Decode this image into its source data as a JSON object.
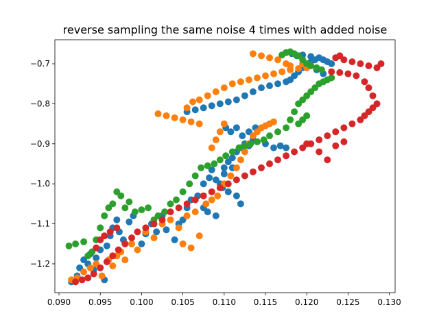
{
  "chart_data": {
    "type": "scatter",
    "title": "reverse sampling the same noise 4 times with added noise",
    "xlabel": "",
    "ylabel": "",
    "xlim": [
      0.0895,
      0.1307
    ],
    "ylim": [
      -1.272,
      -0.64
    ],
    "xticks": [
      0.09,
      0.095,
      0.1,
      0.105,
      0.11,
      0.115,
      0.12,
      0.125,
      0.13
    ],
    "xtick_labels": [
      "0.090",
      "0.095",
      "0.100",
      "0.105",
      "0.110",
      "0.115",
      "0.120",
      "0.125",
      "0.130"
    ],
    "yticks": [
      -0.7,
      -0.8,
      -0.9,
      -1.0,
      -1.1,
      -1.2
    ],
    "ytick_labels": [
      "−0.7",
      "−0.8",
      "−0.9",
      "−1.0",
      "−1.1",
      "−1.2"
    ],
    "grid": false,
    "series": [
      {
        "color": "#1f77b4",
        "points": [
          [
            0.0915,
            -1.245
          ],
          [
            0.0922,
            -1.23
          ],
          [
            0.0925,
            -1.21
          ],
          [
            0.093,
            -1.19
          ],
          [
            0.0935,
            -1.2
          ],
          [
            0.0938,
            -1.175
          ],
          [
            0.0942,
            -1.215
          ],
          [
            0.0945,
            -1.185
          ],
          [
            0.095,
            -1.165
          ],
          [
            0.0955,
            -1.24
          ],
          [
            0.0958,
            -1.155
          ],
          [
            0.0962,
            -1.13
          ],
          [
            0.0965,
            -1.11
          ],
          [
            0.097,
            -1.09
          ],
          [
            0.0973,
            -1.12
          ],
          [
            0.0978,
            -1.14
          ],
          [
            0.0985,
            -1.095
          ],
          [
            0.099,
            -1.08
          ],
          [
            0.1,
            -1.15
          ],
          [
            0.1005,
            -1.125
          ],
          [
            0.1012,
            -1.1
          ],
          [
            0.1018,
            -1.12
          ],
          [
            0.1025,
            -1.08
          ],
          [
            0.103,
            -1.115
          ],
          [
            0.104,
            -1.14
          ],
          [
            0.1045,
            -1.1
          ],
          [
            0.105,
            -1.09
          ],
          [
            0.1055,
            -1.06
          ],
          [
            0.106,
            -1.04
          ],
          [
            0.1068,
            -1.03
          ],
          [
            0.1075,
            -1.0
          ],
          [
            0.1082,
            -0.985
          ],
          [
            0.109,
            -0.99
          ],
          [
            0.1095,
            -1.0
          ],
          [
            0.11,
            -0.96
          ],
          [
            0.1105,
            -0.945
          ],
          [
            0.111,
            -0.935
          ],
          [
            0.1115,
            -0.92
          ],
          [
            0.112,
            -0.91
          ],
          [
            0.1125,
            -0.9
          ],
          [
            0.113,
            -0.905
          ],
          [
            0.1135,
            -0.89
          ],
          [
            0.114,
            -0.895
          ],
          [
            0.115,
            -0.9
          ],
          [
            0.116,
            -0.91
          ],
          [
            0.1168,
            -0.905
          ],
          [
            0.1175,
            -0.91
          ],
          [
            0.1105,
            -1.02
          ],
          [
            0.1115,
            -1.03
          ],
          [
            0.112,
            -1.05
          ],
          [
            0.1075,
            -1.06
          ],
          [
            0.108,
            -1.07
          ],
          [
            0.109,
            -1.08
          ],
          [
            0.1098,
            -1.01
          ],
          [
            0.1102,
            -0.86
          ],
          [
            0.1108,
            -0.87
          ],
          [
            0.1115,
            -0.86
          ],
          [
            0.1122,
            -0.88
          ],
          [
            0.113,
            -0.87
          ],
          [
            0.1138,
            -0.86
          ],
          [
            0.1055,
            -0.82
          ],
          [
            0.1065,
            -0.815
          ],
          [
            0.1075,
            -0.81
          ],
          [
            0.1085,
            -0.805
          ],
          [
            0.1095,
            -0.8
          ],
          [
            0.1105,
            -0.795
          ],
          [
            0.1115,
            -0.79
          ],
          [
            0.1125,
            -0.78
          ],
          [
            0.1135,
            -0.77
          ],
          [
            0.1145,
            -0.76
          ],
          [
            0.1155,
            -0.755
          ],
          [
            0.1165,
            -0.75
          ],
          [
            0.1175,
            -0.745
          ],
          [
            0.118,
            -0.74
          ],
          [
            0.1185,
            -0.73
          ],
          [
            0.119,
            -0.72
          ],
          [
            0.1195,
            -0.71
          ],
          [
            0.12,
            -0.7
          ],
          [
            0.1205,
            -0.695
          ],
          [
            0.121,
            -0.69
          ],
          [
            0.1215,
            -0.685
          ],
          [
            0.122,
            -0.69
          ],
          [
            0.1225,
            -0.695
          ],
          [
            0.123,
            -0.7
          ],
          [
            0.1188,
            -0.68
          ],
          [
            0.1182,
            -0.675
          ],
          [
            0.1195,
            -0.678
          ],
          [
            0.1205,
            -0.682
          ],
          [
            0.1212,
            -0.715
          ],
          [
            0.122,
            -0.725
          ],
          [
            0.111,
            -0.96
          ],
          [
            0.11,
            -0.975
          ],
          [
            0.1085,
            -0.965
          ]
        ]
      },
      {
        "color": "#ff7f0e",
        "points": [
          [
            0.0915,
            -1.24
          ],
          [
            0.0922,
            -1.235
          ],
          [
            0.093,
            -1.22
          ],
          [
            0.0938,
            -1.21
          ],
          [
            0.0945,
            -1.2
          ],
          [
            0.0952,
            -1.23
          ],
          [
            0.096,
            -1.19
          ],
          [
            0.0965,
            -1.205
          ],
          [
            0.097,
            -1.18
          ],
          [
            0.0975,
            -1.17
          ],
          [
            0.098,
            -1.19
          ],
          [
            0.0988,
            -1.15
          ],
          [
            0.0995,
            -1.165
          ],
          [
            0.1005,
            -1.12
          ],
          [
            0.1015,
            -1.135
          ],
          [
            0.1025,
            -1.1
          ],
          [
            0.1035,
            -1.09
          ],
          [
            0.1045,
            -1.11
          ],
          [
            0.1055,
            -1.08
          ],
          [
            0.1065,
            -1.07
          ],
          [
            0.105,
            -1.15
          ],
          [
            0.106,
            -1.16
          ],
          [
            0.107,
            -1.13
          ],
          [
            0.1078,
            -1.05
          ],
          [
            0.1085,
            -1.04
          ],
          [
            0.1092,
            -1.03
          ],
          [
            0.11,
            -1.0
          ],
          [
            0.1108,
            -0.98
          ],
          [
            0.1115,
            -0.96
          ],
          [
            0.112,
            -0.94
          ],
          [
            0.1125,
            -0.92
          ],
          [
            0.113,
            -0.9
          ],
          [
            0.1135,
            -0.88
          ],
          [
            0.114,
            -0.87
          ],
          [
            0.1145,
            -0.86
          ],
          [
            0.115,
            -0.855
          ],
          [
            0.1155,
            -0.85
          ],
          [
            0.116,
            -0.845
          ],
          [
            0.102,
            -0.825
          ],
          [
            0.103,
            -0.83
          ],
          [
            0.104,
            -0.835
          ],
          [
            0.105,
            -0.84
          ],
          [
            0.106,
            -0.845
          ],
          [
            0.107,
            -0.85
          ],
          [
            0.1055,
            -0.81
          ],
          [
            0.1062,
            -0.795
          ],
          [
            0.107,
            -0.79
          ],
          [
            0.108,
            -0.78
          ],
          [
            0.109,
            -0.77
          ],
          [
            0.11,
            -0.76
          ],
          [
            0.111,
            -0.75
          ],
          [
            0.112,
            -0.745
          ],
          [
            0.113,
            -0.74
          ],
          [
            0.114,
            -0.735
          ],
          [
            0.115,
            -0.73
          ],
          [
            0.116,
            -0.725
          ],
          [
            0.117,
            -0.72
          ],
          [
            0.118,
            -0.715
          ],
          [
            0.119,
            -0.712
          ],
          [
            0.12,
            -0.71
          ],
          [
            0.1175,
            -0.7
          ],
          [
            0.1165,
            -0.69
          ],
          [
            0.1155,
            -0.685
          ],
          [
            0.1145,
            -0.68
          ],
          [
            0.1135,
            -0.675
          ],
          [
            0.118,
            -0.705
          ],
          [
            0.1195,
            -0.7
          ],
          [
            0.1205,
            -0.705
          ],
          [
            0.11,
            -0.85
          ],
          [
            0.1095,
            -0.87
          ],
          [
            0.109,
            -0.89
          ],
          [
            0.1085,
            -0.91
          ]
        ]
      },
      {
        "color": "#2ca02c",
        "points": [
          [
            0.0912,
            -1.155
          ],
          [
            0.092,
            -1.15
          ],
          [
            0.093,
            -1.145
          ],
          [
            0.0935,
            -1.18
          ],
          [
            0.094,
            -1.17
          ],
          [
            0.0945,
            -1.14
          ],
          [
            0.095,
            -1.11
          ],
          [
            0.0955,
            -1.08
          ],
          [
            0.096,
            -1.06
          ],
          [
            0.0965,
            -1.05
          ],
          [
            0.097,
            -1.02
          ],
          [
            0.0975,
            -1.03
          ],
          [
            0.098,
            -1.06
          ],
          [
            0.0985,
            -1.045
          ],
          [
            0.0992,
            -1.07
          ],
          [
            0.1,
            -1.065
          ],
          [
            0.1008,
            -1.06
          ],
          [
            0.1015,
            -1.09
          ],
          [
            0.102,
            -1.08
          ],
          [
            0.1028,
            -1.07
          ],
          [
            0.1035,
            -1.05
          ],
          [
            0.1042,
            -1.04
          ],
          [
            0.105,
            -1.02
          ],
          [
            0.1058,
            -1.0
          ],
          [
            0.1065,
            -0.98
          ],
          [
            0.1072,
            -0.96
          ],
          [
            0.108,
            -0.955
          ],
          [
            0.1088,
            -0.95
          ],
          [
            0.1095,
            -0.94
          ],
          [
            0.1102,
            -0.93
          ],
          [
            0.111,
            -0.92
          ],
          [
            0.1118,
            -0.91
          ],
          [
            0.1125,
            -0.905
          ],
          [
            0.1132,
            -0.9
          ],
          [
            0.114,
            -0.895
          ],
          [
            0.1148,
            -0.89
          ],
          [
            0.1155,
            -0.88
          ],
          [
            0.1165,
            -0.87
          ],
          [
            0.1175,
            -0.86
          ],
          [
            0.118,
            -0.84
          ],
          [
            0.1185,
            -0.82
          ],
          [
            0.119,
            -0.8
          ],
          [
            0.1195,
            -0.79
          ],
          [
            0.12,
            -0.78
          ],
          [
            0.1205,
            -0.77
          ],
          [
            0.121,
            -0.76
          ],
          [
            0.1215,
            -0.75
          ],
          [
            0.122,
            -0.745
          ],
          [
            0.1225,
            -0.74
          ],
          [
            0.123,
            -0.735
          ],
          [
            0.12,
            -0.7
          ],
          [
            0.1195,
            -0.69
          ],
          [
            0.119,
            -0.68
          ],
          [
            0.1185,
            -0.675
          ],
          [
            0.118,
            -0.67
          ],
          [
            0.1175,
            -0.672
          ],
          [
            0.117,
            -0.678
          ],
          [
            0.1205,
            -0.705
          ],
          [
            0.1212,
            -0.71
          ],
          [
            0.1218,
            -0.715
          ],
          [
            0.119,
            -0.85
          ],
          [
            0.1195,
            -0.84
          ],
          [
            0.12,
            -0.83
          ]
        ]
      },
      {
        "color": "#d62728",
        "points": [
          [
            0.092,
            -1.245
          ],
          [
            0.0928,
            -1.24
          ],
          [
            0.0935,
            -1.235
          ],
          [
            0.0942,
            -1.225
          ],
          [
            0.095,
            -1.21
          ],
          [
            0.0958,
            -1.195
          ],
          [
            0.0965,
            -1.18
          ],
          [
            0.0972,
            -1.165
          ],
          [
            0.098,
            -1.15
          ],
          [
            0.0988,
            -1.135
          ],
          [
            0.0945,
            -1.16
          ],
          [
            0.095,
            -1.14
          ],
          [
            0.0955,
            -1.13
          ],
          [
            0.0962,
            -1.12
          ],
          [
            0.097,
            -1.11
          ],
          [
            0.0995,
            -1.12
          ],
          [
            0.1005,
            -1.11
          ],
          [
            0.1015,
            -1.1
          ],
          [
            0.1025,
            -1.09
          ],
          [
            0.1035,
            -1.07
          ],
          [
            0.1045,
            -1.06
          ],
          [
            0.1055,
            -1.05
          ],
          [
            0.1065,
            -1.04
          ],
          [
            0.1075,
            -1.03
          ],
          [
            0.1085,
            -1.02
          ],
          [
            0.1095,
            -1.01
          ],
          [
            0.1105,
            -1.0
          ],
          [
            0.1115,
            -0.99
          ],
          [
            0.1125,
            -0.98
          ],
          [
            0.1135,
            -0.97
          ],
          [
            0.1145,
            -0.96
          ],
          [
            0.1155,
            -0.95
          ],
          [
            0.1165,
            -0.94
          ],
          [
            0.1175,
            -0.93
          ],
          [
            0.1185,
            -0.92
          ],
          [
            0.1195,
            -0.91
          ],
          [
            0.1205,
            -0.9
          ],
          [
            0.1215,
            -0.89
          ],
          [
            0.1225,
            -0.88
          ],
          [
            0.1235,
            -0.87
          ],
          [
            0.1245,
            -0.86
          ],
          [
            0.1255,
            -0.85
          ],
          [
            0.1265,
            -0.84
          ],
          [
            0.127,
            -0.83
          ],
          [
            0.1275,
            -0.82
          ],
          [
            0.128,
            -0.81
          ],
          [
            0.1285,
            -0.8
          ],
          [
            0.128,
            -0.78
          ],
          [
            0.1275,
            -0.76
          ],
          [
            0.127,
            -0.745
          ],
          [
            0.126,
            -0.73
          ],
          [
            0.125,
            -0.725
          ],
          [
            0.124,
            -0.722
          ],
          [
            0.123,
            -0.72
          ],
          [
            0.1245,
            -0.69
          ],
          [
            0.1255,
            -0.695
          ],
          [
            0.1265,
            -0.7
          ],
          [
            0.1275,
            -0.705
          ],
          [
            0.1285,
            -0.71
          ],
          [
            0.129,
            -0.7
          ],
          [
            0.124,
            -0.68
          ],
          [
            0.1235,
            -0.685
          ],
          [
            0.12,
            -0.9
          ],
          [
            0.1215,
            -0.92
          ],
          [
            0.1225,
            -0.94
          ],
          [
            0.1235,
            -0.905
          ],
          [
            0.1245,
            -0.895
          ]
        ]
      }
    ]
  }
}
